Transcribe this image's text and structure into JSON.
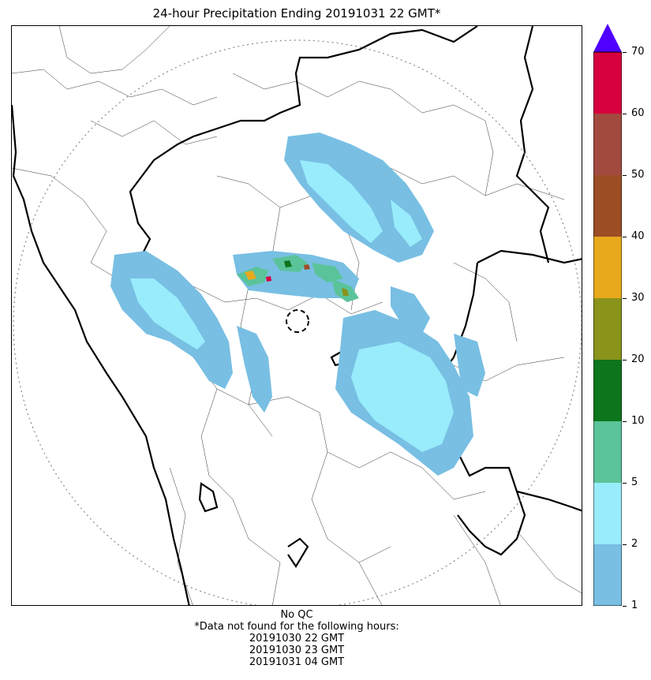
{
  "title": "24-hour Precipitation Ending 20191031 22 GMT*",
  "colorbar": {
    "ticks": [
      "1",
      "2",
      "5",
      "10",
      "20",
      "30",
      "40",
      "50",
      "60",
      "70"
    ],
    "colors": [
      "#78bfe3",
      "#98ecfb",
      "#5bc39a",
      "#0d751b",
      "#8a931a",
      "#e8a91c",
      "#9c4e25",
      "#a34a40",
      "#d6003e"
    ],
    "extend_color": "#5000ff"
  },
  "footnote": {
    "qc": "No QC",
    "missing_header": "*Data not found for the following hours:",
    "missing_hours": [
      "20191030 22 GMT",
      "20191030 23 GMT",
      "20191031 04 GMT"
    ]
  },
  "legend": {
    "light_rain_color": "#78bfe3",
    "moderate_rain_color": "#98ecfb",
    "border_color": "#000000",
    "range_ring_color": "#888888"
  }
}
